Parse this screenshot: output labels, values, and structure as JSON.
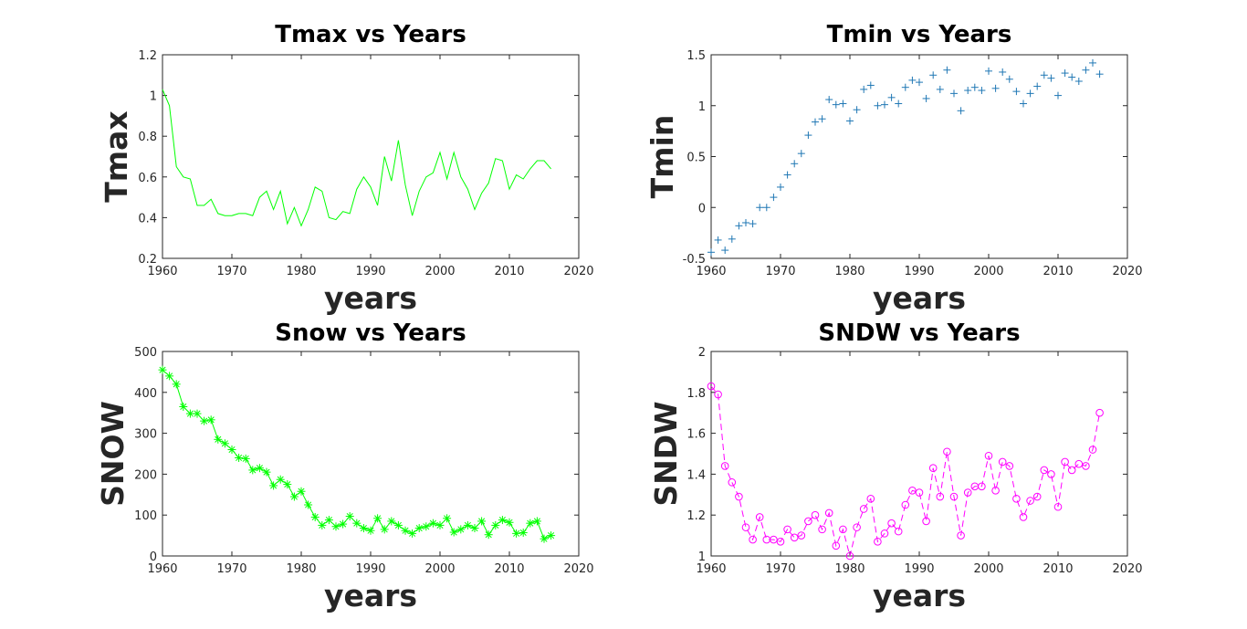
{
  "chart_data": [
    {
      "type": "line",
      "title": "Tmax vs Years",
      "xlabel": "years",
      "ylabel": "Tmax",
      "xlim": [
        1960,
        2020
      ],
      "ylim": [
        0.2,
        1.2
      ],
      "xticks": [
        1960,
        1970,
        1980,
        1990,
        2000,
        2010,
        2020
      ],
      "yticks": [
        0.2,
        0.4,
        0.6,
        0.8,
        1,
        1.2
      ],
      "xtick_labels": [
        "1960",
        "1970",
        "1980",
        "1990",
        "2000",
        "2010",
        "2020"
      ],
      "ytick_labels": [
        "0.2",
        "0.4",
        "0.6",
        "0.8",
        "1",
        "1.2"
      ],
      "grid": false,
      "series": [
        {
          "color": "#00ff00",
          "line_style": "solid",
          "marker": "none",
          "x": [
            1960,
            1961,
            1962,
            1963,
            1964,
            1965,
            1966,
            1967,
            1968,
            1969,
            1970,
            1971,
            1972,
            1973,
            1974,
            1975,
            1976,
            1977,
            1978,
            1979,
            1980,
            1981,
            1982,
            1983,
            1984,
            1985,
            1986,
            1987,
            1988,
            1989,
            1990,
            1991,
            1992,
            1993,
            1994,
            1995,
            1996,
            1997,
            1998,
            1999,
            2000,
            2001,
            2002,
            2003,
            2004,
            2005,
            2006,
            2007,
            2008,
            2009,
            2010,
            2011,
            2012,
            2013,
            2014,
            2015,
            2016
          ],
          "y": [
            1.03,
            0.95,
            0.65,
            0.6,
            0.59,
            0.46,
            0.46,
            0.49,
            0.42,
            0.41,
            0.41,
            0.42,
            0.42,
            0.41,
            0.5,
            0.53,
            0.44,
            0.53,
            0.37,
            0.45,
            0.36,
            0.44,
            0.55,
            0.53,
            0.4,
            0.39,
            0.43,
            0.42,
            0.54,
            0.6,
            0.55,
            0.46,
            0.7,
            0.58,
            0.78,
            0.56,
            0.41,
            0.53,
            0.6,
            0.62,
            0.72,
            0.59,
            0.72,
            0.6,
            0.54,
            0.44,
            0.52,
            0.57,
            0.69,
            0.68,
            0.54,
            0.61,
            0.59,
            0.64,
            0.68,
            0.68,
            0.64
          ]
        }
      ]
    },
    {
      "type": "scatter",
      "title": "Tmin vs Years",
      "xlabel": "years",
      "ylabel": "Tmin",
      "xlim": [
        1960,
        2020
      ],
      "ylim": [
        -0.5,
        1.5
      ],
      "xticks": [
        1960,
        1970,
        1980,
        1990,
        2000,
        2010,
        2020
      ],
      "yticks": [
        -0.5,
        0,
        0.5,
        1,
        1.5
      ],
      "xtick_labels": [
        "1960",
        "1970",
        "1980",
        "1990",
        "2000",
        "2010",
        "2020"
      ],
      "ytick_labels": [
        "-0.5",
        "0",
        "0.5",
        "1",
        "1.5"
      ],
      "grid": false,
      "series": [
        {
          "color": "#1f77b4",
          "line_style": "none",
          "marker": "plus",
          "x": [
            1960,
            1961,
            1962,
            1963,
            1964,
            1965,
            1966,
            1967,
            1968,
            1969,
            1970,
            1971,
            1972,
            1973,
            1974,
            1975,
            1976,
            1977,
            1978,
            1979,
            1980,
            1981,
            1982,
            1983,
            1984,
            1985,
            1986,
            1987,
            1988,
            1989,
            1990,
            1991,
            1992,
            1993,
            1994,
            1995,
            1996,
            1997,
            1998,
            1999,
            2000,
            2001,
            2002,
            2003,
            2004,
            2005,
            2006,
            2007,
            2008,
            2009,
            2010,
            2011,
            2012,
            2013,
            2014,
            2015,
            2016
          ],
          "y": [
            -0.44,
            -0.32,
            -0.42,
            -0.31,
            -0.18,
            -0.15,
            -0.16,
            0,
            0,
            0.1,
            0.2,
            0.32,
            0.43,
            0.53,
            0.71,
            0.84,
            0.87,
            1.06,
            1.01,
            1.02,
            0.85,
            0.96,
            1.16,
            1.2,
            1.0,
            1.01,
            1.08,
            1.02,
            1.18,
            1.25,
            1.23,
            1.07,
            1.3,
            1.16,
            1.35,
            1.12,
            0.95,
            1.15,
            1.18,
            1.15,
            1.34,
            1.17,
            1.33,
            1.26,
            1.14,
            1.02,
            1.12,
            1.19,
            1.3,
            1.27,
            1.1,
            1.32,
            1.28,
            1.24,
            1.35,
            1.42,
            1.31
          ]
        }
      ]
    },
    {
      "type": "line",
      "title": "Snow vs Years",
      "xlabel": "years",
      "ylabel": "SNOW",
      "xlim": [
        1960,
        2020
      ],
      "ylim": [
        0,
        500
      ],
      "xticks": [
        1960,
        1970,
        1980,
        1990,
        2000,
        2010,
        2020
      ],
      "yticks": [
        0,
        100,
        200,
        300,
        400,
        500
      ],
      "xtick_labels": [
        "1960",
        "1970",
        "1980",
        "1990",
        "2000",
        "2010",
        "2020"
      ],
      "ytick_labels": [
        "0",
        "100",
        "200",
        "300",
        "400",
        "500"
      ],
      "grid": false,
      "series": [
        {
          "color": "#00ff00",
          "line_style": "solid",
          "marker": "asterisk",
          "x": [
            1960,
            1961,
            1962,
            1963,
            1964,
            1965,
            1966,
            1967,
            1968,
            1969,
            1970,
            1971,
            1972,
            1973,
            1974,
            1975,
            1976,
            1977,
            1978,
            1979,
            1980,
            1981,
            1982,
            1983,
            1984,
            1985,
            1986,
            1987,
            1988,
            1989,
            1990,
            1991,
            1992,
            1993,
            1994,
            1995,
            1996,
            1997,
            1998,
            1999,
            2000,
            2001,
            2002,
            2003,
            2004,
            2005,
            2006,
            2007,
            2008,
            2009,
            2010,
            2011,
            2012,
            2013,
            2014,
            2015,
            2016
          ],
          "y": [
            455,
            440,
            420,
            365,
            348,
            348,
            330,
            333,
            285,
            275,
            260,
            240,
            238,
            210,
            215,
            205,
            172,
            187,
            175,
            145,
            158,
            125,
            95,
            75,
            88,
            72,
            78,
            97,
            80,
            68,
            62,
            92,
            65,
            85,
            75,
            62,
            55,
            68,
            72,
            80,
            75,
            92,
            58,
            65,
            75,
            68,
            85,
            52,
            75,
            88,
            82,
            55,
            57,
            80,
            85,
            42,
            50
          ]
        }
      ]
    },
    {
      "type": "line",
      "title": "SNDW vs Years",
      "xlabel": "years",
      "ylabel": "SNDW",
      "xlim": [
        1960,
        2020
      ],
      "ylim": [
        1,
        2
      ],
      "xticks": [
        1960,
        1970,
        1980,
        1990,
        2000,
        2010,
        2020
      ],
      "yticks": [
        1,
        1.2,
        1.4,
        1.6,
        1.8,
        2
      ],
      "xtick_labels": [
        "1960",
        "1970",
        "1980",
        "1990",
        "2000",
        "2010",
        "2020"
      ],
      "ytick_labels": [
        "1",
        "1.2",
        "1.4",
        "1.6",
        "1.8",
        "2"
      ],
      "grid": false,
      "series": [
        {
          "color": "#ff00ff",
          "line_style": "dashed",
          "marker": "circle",
          "x": [
            1960,
            1961,
            1962,
            1963,
            1964,
            1965,
            1966,
            1967,
            1968,
            1969,
            1970,
            1971,
            1972,
            1973,
            1974,
            1975,
            1976,
            1977,
            1978,
            1979,
            1980,
            1981,
            1982,
            1983,
            1984,
            1985,
            1986,
            1987,
            1988,
            1989,
            1990,
            1991,
            1992,
            1993,
            1994,
            1995,
            1996,
            1997,
            1998,
            1999,
            2000,
            2001,
            2002,
            2003,
            2004,
            2005,
            2006,
            2007,
            2008,
            2009,
            2010,
            2011,
            2012,
            2013,
            2014,
            2015,
            2016
          ],
          "y": [
            1.83,
            1.79,
            1.44,
            1.36,
            1.29,
            1.14,
            1.08,
            1.19,
            1.08,
            1.08,
            1.07,
            1.13,
            1.09,
            1.1,
            1.17,
            1.2,
            1.13,
            1.21,
            1.05,
            1.13,
            1.0,
            1.14,
            1.23,
            1.28,
            1.07,
            1.11,
            1.16,
            1.12,
            1.25,
            1.32,
            1.31,
            1.17,
            1.43,
            1.29,
            1.51,
            1.29,
            1.1,
            1.31,
            1.34,
            1.34,
            1.49,
            1.32,
            1.46,
            1.44,
            1.28,
            1.19,
            1.27,
            1.29,
            1.42,
            1.4,
            1.24,
            1.46,
            1.42,
            1.45,
            1.44,
            1.52,
            1.7
          ]
        }
      ]
    }
  ]
}
